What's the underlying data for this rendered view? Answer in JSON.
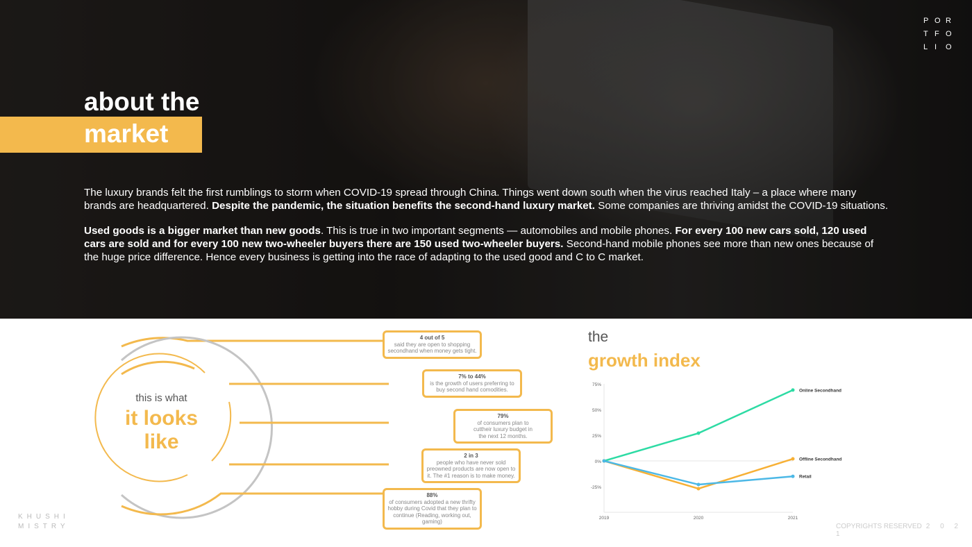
{
  "portfolio_letters": [
    "P",
    "O",
    "R",
    "T",
    "F",
    "O",
    "L",
    "I",
    "O"
  ],
  "hero": {
    "title_line1": "about the",
    "title_line2": "market",
    "p1_a": "The luxury brands felt the first rumblings to storm when COVID-19 spread through China. Things went down south when the virus reached Italy – a place where many brands are headquartered. ",
    "p1_b": "Despite the pandemic, the situation benefits the second-hand luxury market.",
    "p1_c": " Some companies are thriving amidst the COVID-19 situations.",
    "p2_a": "Used goods is a bigger market than new goods",
    "p2_b": ". This is true in two important segments — automobiles and mobile phones. ",
    "p2_c": "For every 100 new cars sold, 120 used cars are sold and for every 100 new two-wheeler buyers there are 150 used two-wheeler buyers.",
    "p2_d": " Second-hand mobile phones see more than new ones because of the huge price difference. Hence every business is getting into the race of adapting to the used good and C to C market."
  },
  "looks": {
    "small": "this is what",
    "big1": "it looks",
    "big2": "like"
  },
  "stats": [
    {
      "head": "4 out of 5",
      "body": "said they are open to shopping secondhand when money gets tight."
    },
    {
      "head": "7% to 44%",
      "body": "is the growth of users preferring to buy second hand comodities."
    },
    {
      "head": "79%",
      "body": "of consumers plan to cuttheir luxury budget in the next 12 months."
    },
    {
      "head": "2 in 3",
      "body": "people who have never sold preowned products are now open to it. The #1 reason is to make money."
    },
    {
      "head": "88%",
      "body": "of consumers adopted a new thrifty hobby during Covid that they plan to continue (Reading, working out, gaming)"
    }
  ],
  "growth": {
    "the": "the",
    "title": "growth index"
  },
  "chart_data": {
    "type": "line",
    "x": [
      "2019",
      "2020",
      "2021"
    ],
    "yticks": [
      "75%",
      "50%",
      "25%",
      "0%",
      "-25%"
    ],
    "ylim": [
      -50,
      75
    ],
    "grid": "zero-line only",
    "legend": "end-labels",
    "series": [
      {
        "name": "Online Secondhand",
        "values": [
          0,
          27,
          69
        ],
        "color": "#2ddba4"
      },
      {
        "name": "Offline Secondhand",
        "values": [
          0,
          -27,
          2
        ],
        "color": "#f7b035"
      },
      {
        "name": "Retail",
        "values": [
          0,
          -23,
          -15
        ],
        "color": "#4cb8e6"
      }
    ]
  },
  "author": {
    "line1": "KHUSHI",
    "line2": "MISTRY"
  },
  "copyright": {
    "text": "COPYRIGHTS RESERVED",
    "year": "2 0 2 1"
  },
  "colors": {
    "accent": "#f3b94d"
  }
}
